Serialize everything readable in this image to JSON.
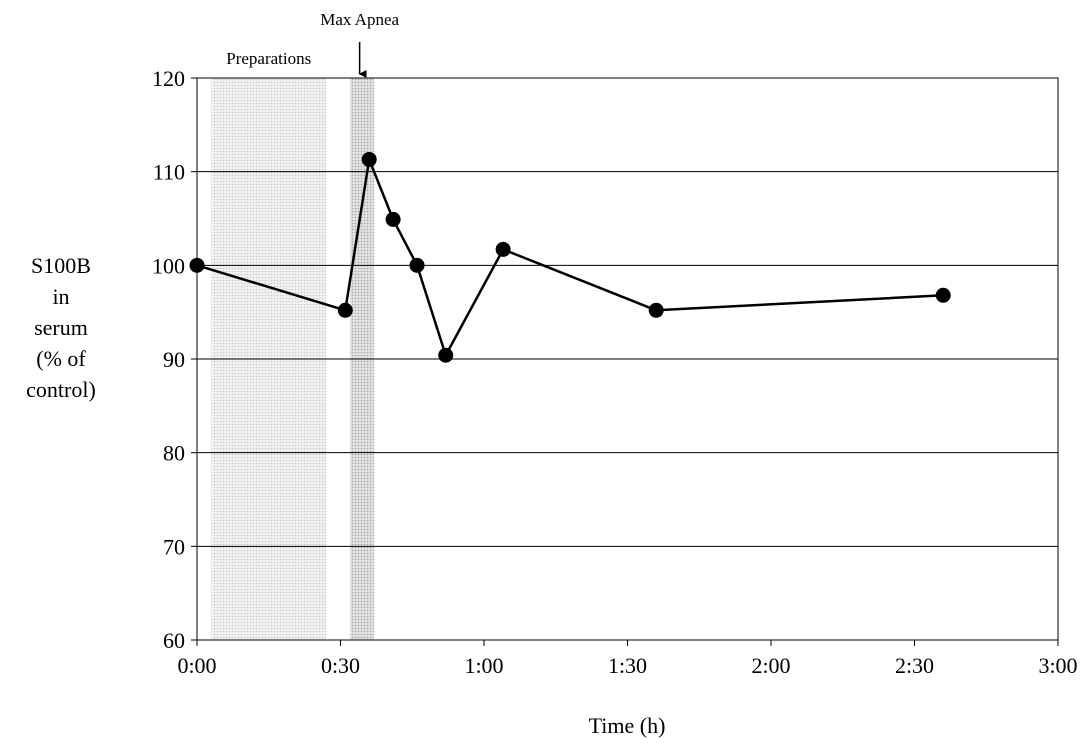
{
  "chart_data": {
    "type": "line",
    "title": "",
    "xlabel": "Time (h)",
    "ylabel_lines": [
      "S100B",
      "in",
      "serum",
      "(% of",
      "control)"
    ],
    "x_ticks": [
      "0:00",
      "0:30",
      "1:00",
      "1:30",
      "2:00",
      "2:30",
      "3:00"
    ],
    "y_ticks": [
      60,
      70,
      80,
      90,
      100,
      110,
      120
    ],
    "xlim_minutes": [
      0,
      180
    ],
    "ylim": [
      60,
      120
    ],
    "grid": "horizontal",
    "legend": "none",
    "series": [
      {
        "x_minutes": [
          0,
          31,
          36,
          41,
          46,
          52,
          64,
          96,
          156
        ],
        "values": [
          100,
          95.2,
          111.3,
          104.9,
          100,
          90.4,
          101.7,
          95.2,
          96.8
        ],
        "color": "#000000"
      }
    ],
    "shaded_regions": [
      {
        "label": "Preparations",
        "x_start_minutes": 3,
        "x_end_minutes": 27,
        "color": "#d9d9d9"
      },
      {
        "label": "Max Apnea",
        "x_start_minutes": 32,
        "x_end_minutes": 37,
        "color": "#bfbfbf"
      }
    ],
    "annotations": [
      {
        "text": "Max Apnea",
        "arrow_x_minutes": 34
      }
    ]
  }
}
